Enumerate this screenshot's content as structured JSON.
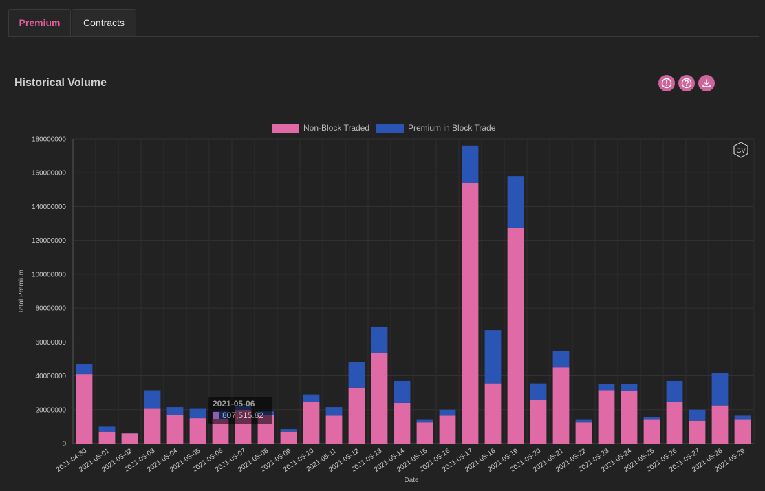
{
  "tabs": [
    {
      "label": "Premium",
      "active": true
    },
    {
      "label": "Contracts",
      "active": false
    }
  ],
  "panel": {
    "title": "Historical Volume",
    "icons": [
      "info-icon",
      "help-icon",
      "download-icon"
    ]
  },
  "watermark": "GV",
  "tooltip": {
    "date": "2021-05-06",
    "value": "807,515.82"
  },
  "colors": {
    "accent": "#e05c9c",
    "non_block": "#e06aa6",
    "block": "#2b55b5",
    "background": "#222222"
  },
  "chart_data": {
    "type": "bar",
    "stacked": true,
    "xlabel": "Date",
    "ylabel": "Total Premium",
    "ylim": [
      0,
      180000000
    ],
    "yticks": [
      "0",
      "20000000",
      "40000000",
      "60000000",
      "80000000",
      "100000000",
      "120000000",
      "140000000",
      "160000000",
      "180000000"
    ],
    "legend_position": "top-center",
    "categories": [
      "2021-04-30",
      "2021-05-01",
      "2021-05-02",
      "2021-05-03",
      "2021-05-04",
      "2021-05-05",
      "2021-05-06",
      "2021-05-07",
      "2021-05-08",
      "2021-05-09",
      "2021-05-10",
      "2021-05-11",
      "2021-05-12",
      "2021-05-13",
      "2021-05-14",
      "2021-05-15",
      "2021-05-16",
      "2021-05-17",
      "2021-05-18",
      "2021-05-19",
      "2021-05-20",
      "2021-05-21",
      "2021-05-22",
      "2021-05-23",
      "2021-05-24",
      "2021-05-25",
      "2021-05-26",
      "2021-05-27",
      "2021-05-28",
      "2021-05-29"
    ],
    "series": [
      {
        "name": "Non-Block Traded",
        "color": "#e06aa6",
        "values": [
          41000000,
          7000000,
          6000000,
          20500000,
          17000000,
          15000000,
          14500000,
          20000000,
          17000000,
          7000000,
          24500000,
          16500000,
          33000000,
          53500000,
          24000000,
          12500000,
          16500000,
          154000000,
          35500000,
          127500000,
          26000000,
          45000000,
          12500000,
          31500000,
          31000000,
          14000000,
          24500000,
          13500000,
          22500000,
          14000000
        ]
      },
      {
        "name": "Premium in Block Trade",
        "color": "#2b55b5",
        "values": [
          6000000,
          3000000,
          500000,
          11000000,
          4500000,
          5500000,
          4500000,
          2000000,
          2000000,
          1500000,
          4500000,
          5000000,
          15000000,
          15500000,
          13000000,
          1500000,
          3500000,
          22000000,
          31500000,
          30500000,
          9500000,
          9500000,
          1500000,
          3500000,
          4000000,
          1500000,
          12500000,
          6500000,
          19000000,
          2500000
        ]
      }
    ]
  }
}
